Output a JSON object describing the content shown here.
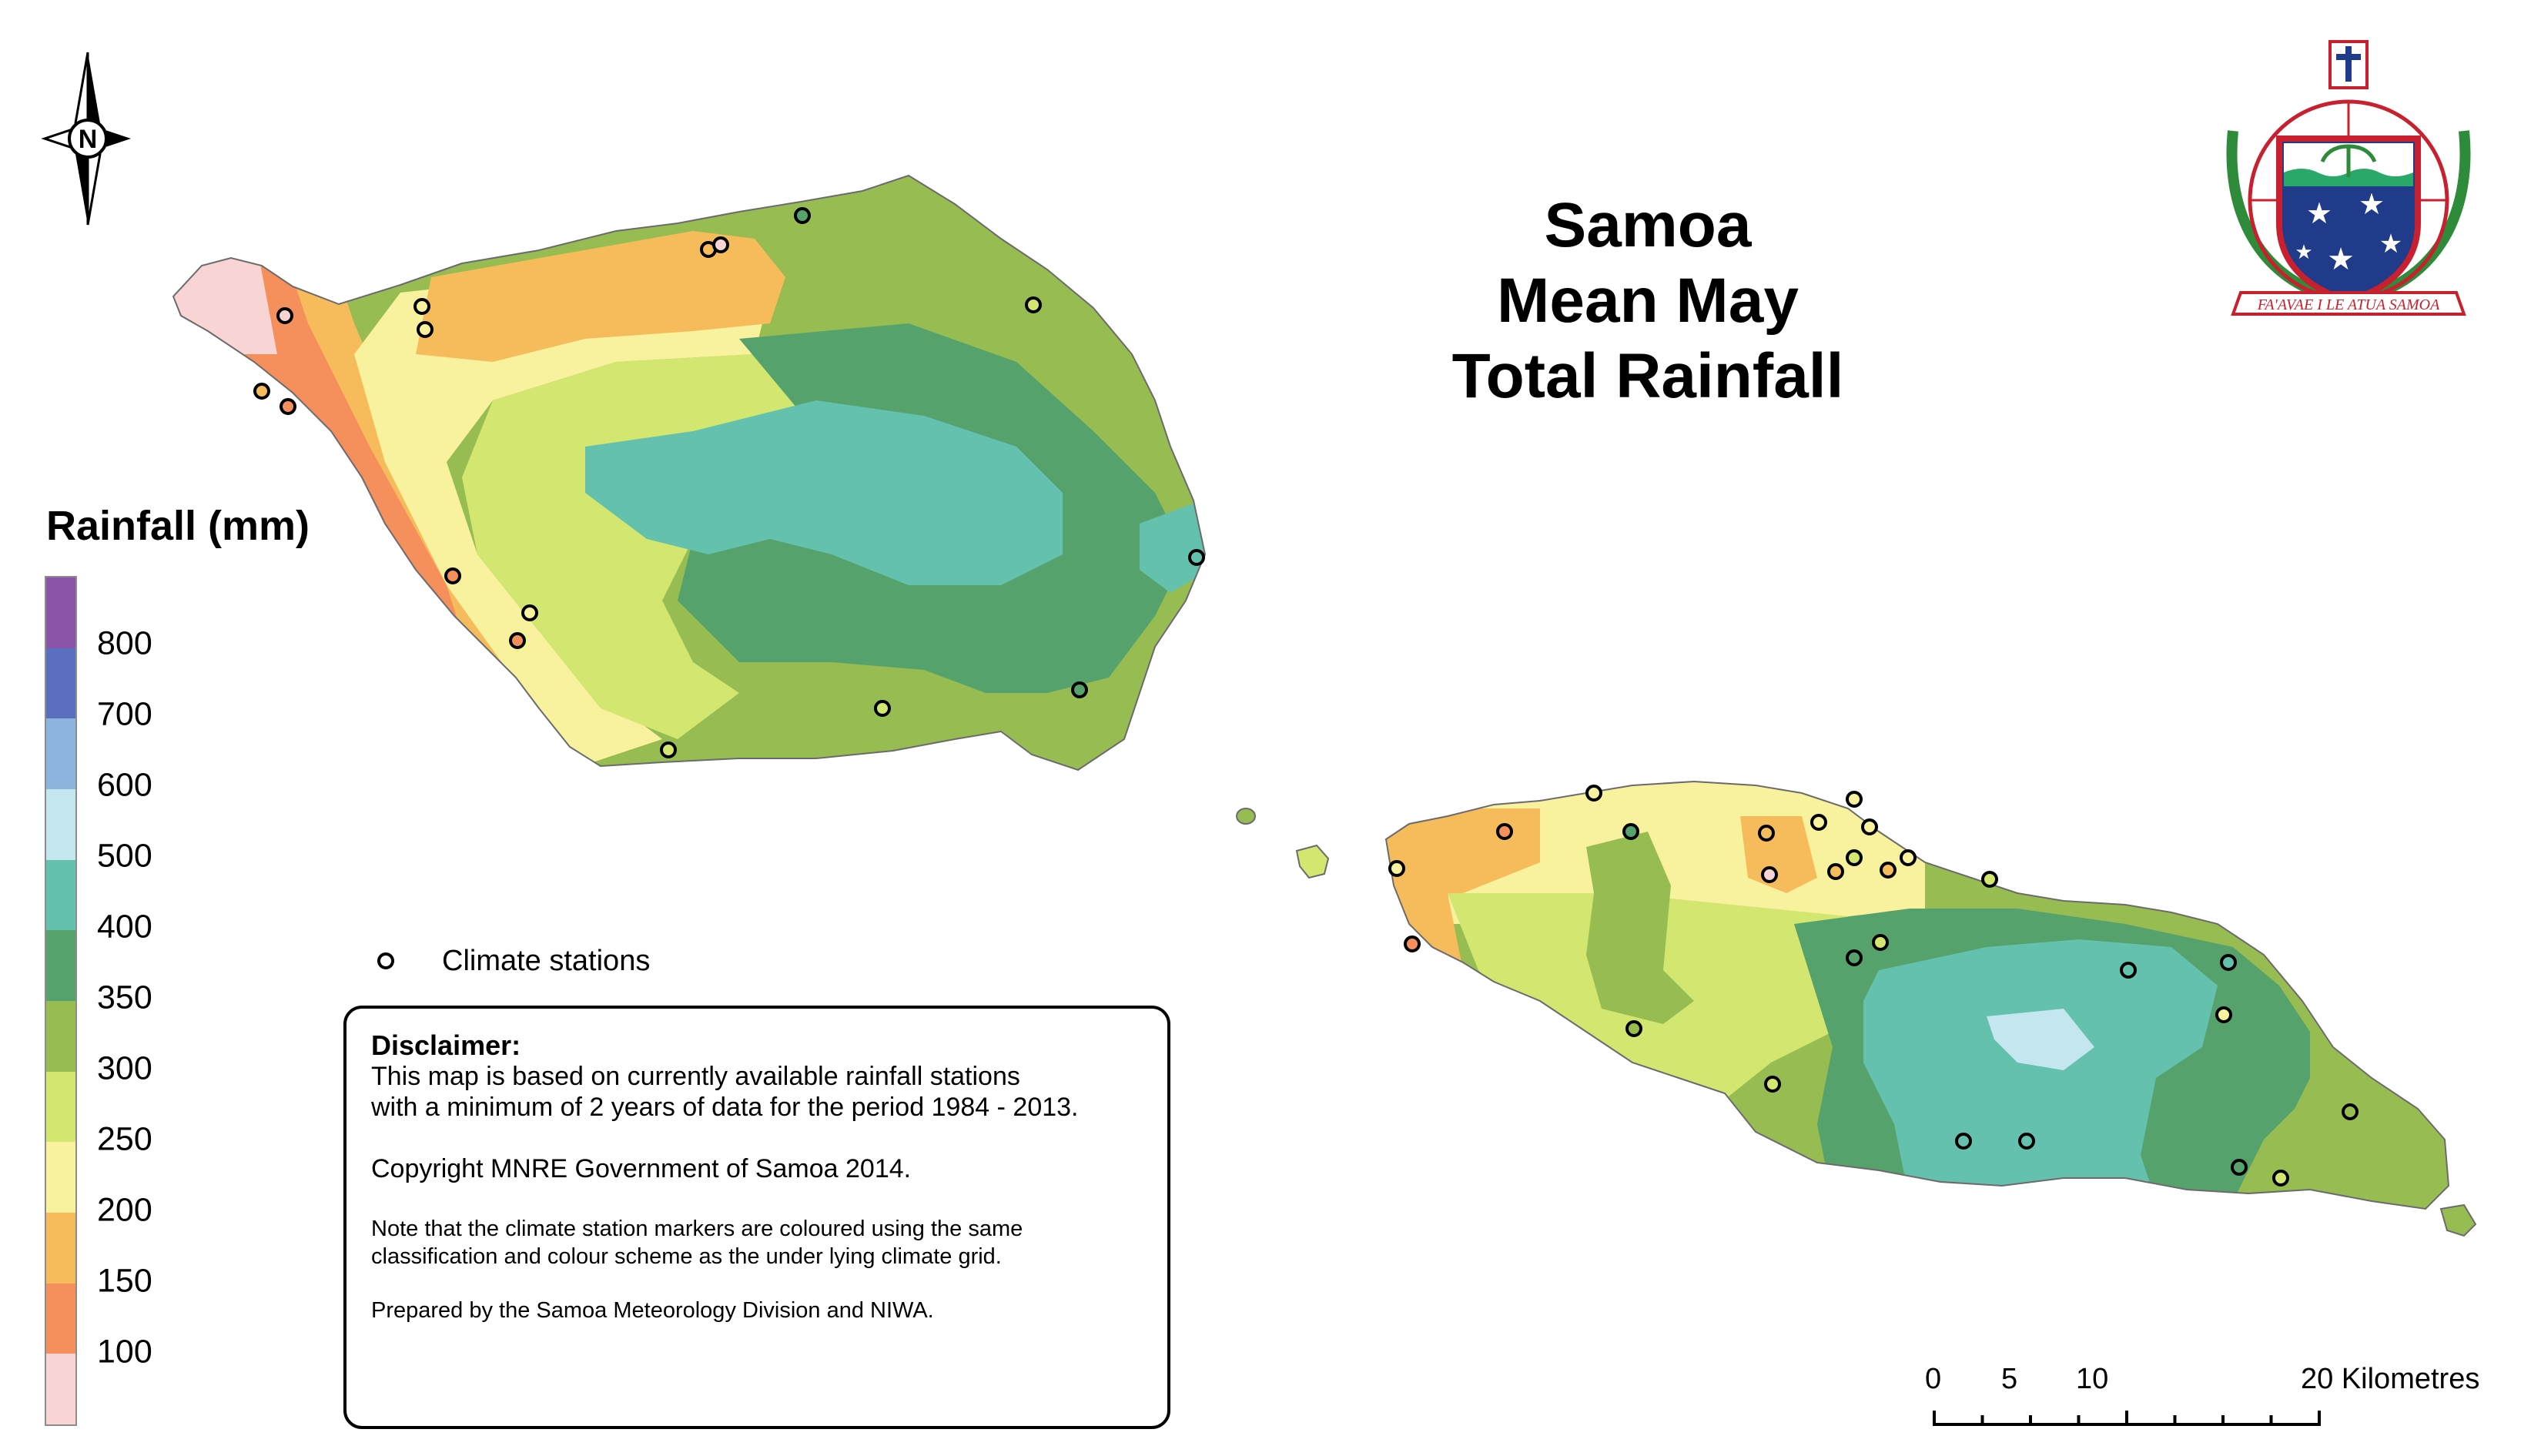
{
  "title": [
    "Samoa",
    "Mean May",
    "Total Rainfall"
  ],
  "legend": {
    "title": "Rainfall (mm)",
    "labels": [
      "800",
      "700",
      "600",
      "500",
      "400",
      "350",
      "300",
      "250",
      "200",
      "150",
      "100"
    ],
    "colors": [
      "#8a55a8",
      "#5a6fc0",
      "#8db6de",
      "#c4e6ee",
      "#63c1ae",
      "#55a26c",
      "#97bd52",
      "#d2e670",
      "#f8f29e",
      "#f6bc5b",
      "#f58f5c",
      "#f8d4d4"
    ]
  },
  "station_key": "Climate stations",
  "disclaimer": {
    "heading": "Disclaimer:",
    "body": [
      "This map is based on currently available rainfall stations",
      "with a minimum of 2 years of data for the period 1984 - 2013."
    ],
    "copyright": "Copyright MNRE Government of Samoa 2014.",
    "note": [
      "Note that the climate station markers are coloured using the same",
      "classification and colour scheme as the under lying climate grid."
    ],
    "prepared": "Prepared by the Samoa Meteorology Division and NIWA."
  },
  "scale_bar": {
    "labels": [
      "0",
      "5",
      "10",
      "20 Kilometres"
    ],
    "ticks_km": [
      0,
      2.5,
      5,
      7.5,
      10,
      12.5,
      15,
      17.5,
      20
    ]
  },
  "north_arrow": {
    "label": "N",
    "icon": "north-arrow-icon"
  },
  "emblem": {
    "motto": "FA'AVAE I LE ATUA SAMOA",
    "icon": "samoa-coat-of-arms-icon"
  },
  "islands": [
    "savaii-island",
    "upolu-island",
    "manono-island",
    "apolima-island"
  ]
}
